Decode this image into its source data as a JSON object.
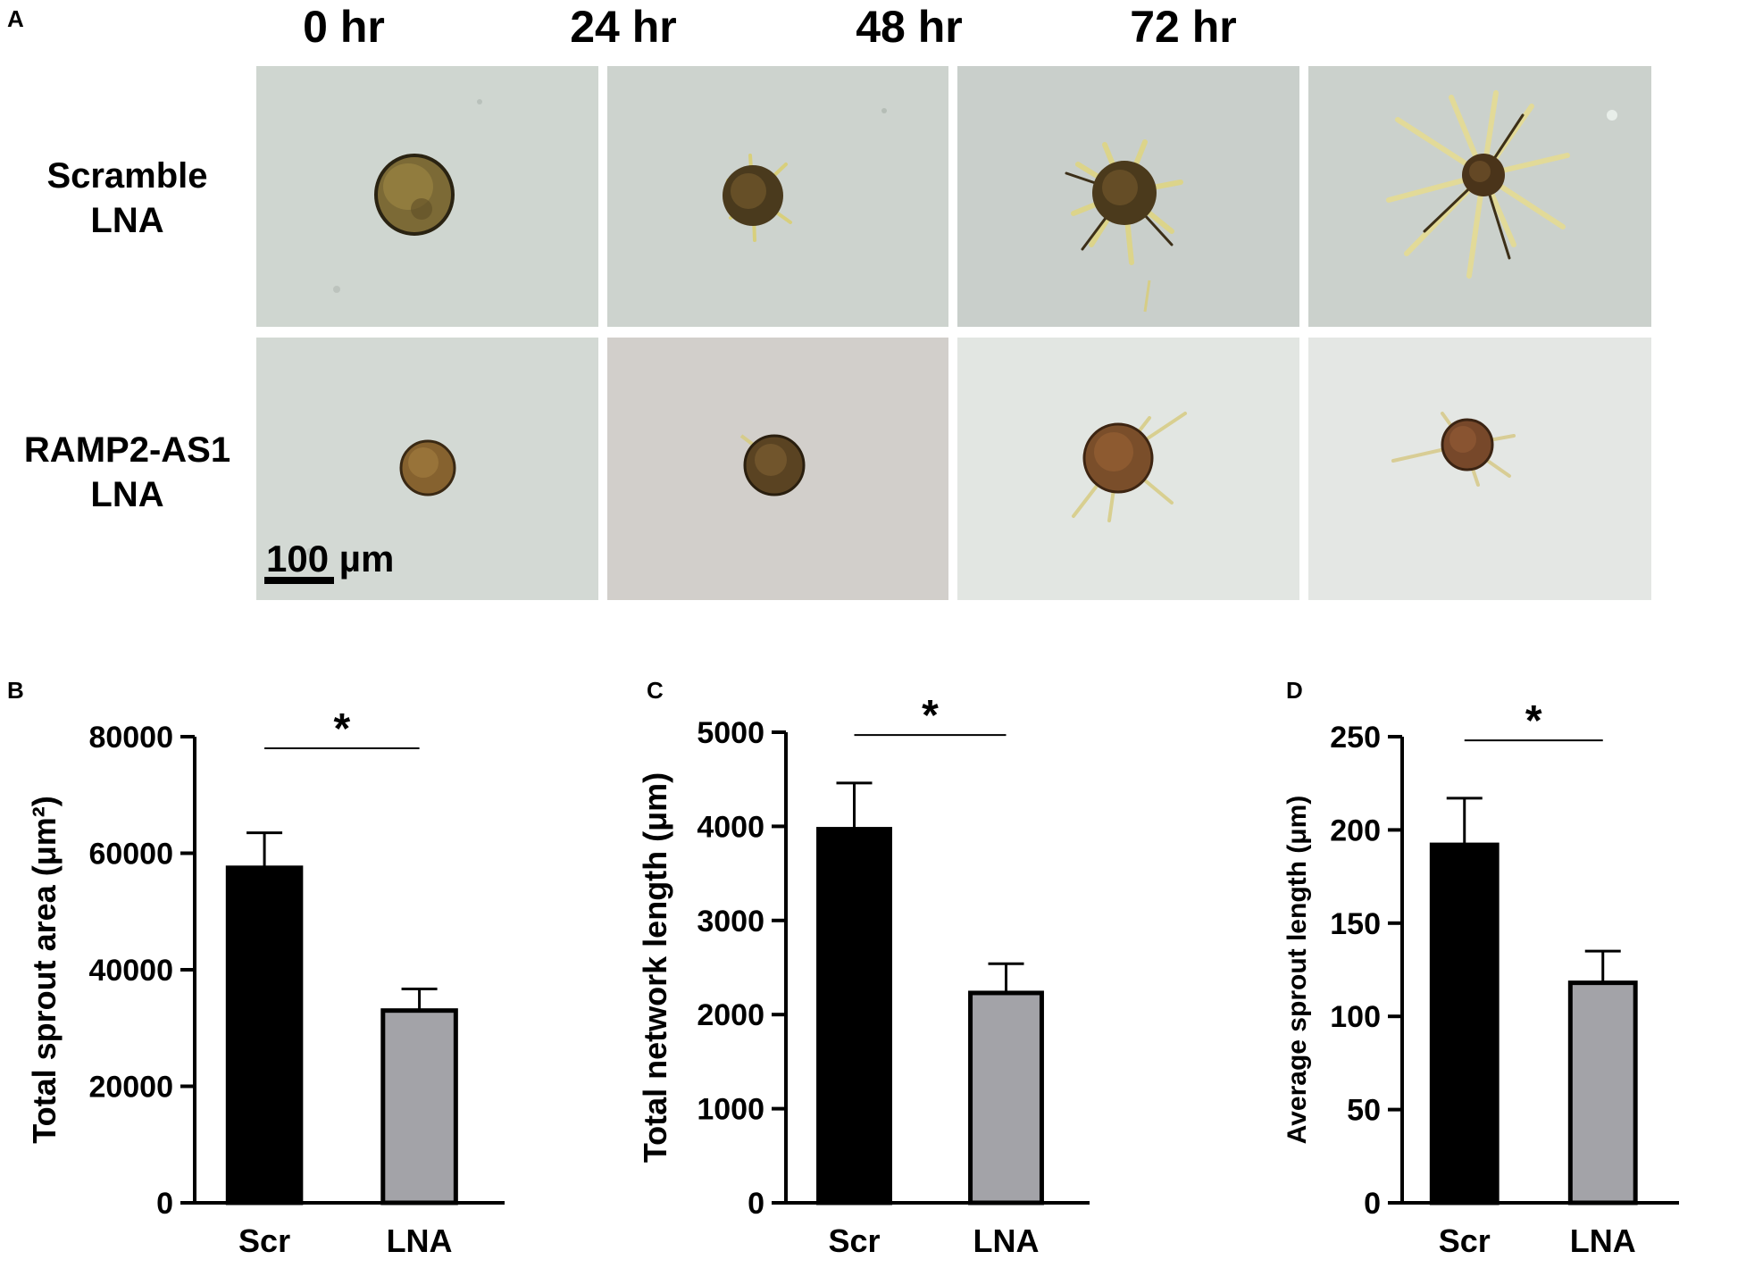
{
  "figure": {
    "panel_a": {
      "letter": "A",
      "time_labels": [
        "0 hr",
        "24 hr",
        "48 hr",
        "72 hr"
      ],
      "row_labels": [
        {
          "line1": "Scramble",
          "line2": "LNA"
        },
        {
          "line1": "RAMP2-AS1",
          "line2": "LNA"
        }
      ],
      "scale_bar_label": "100 µm",
      "micrographs": [
        {
          "row": "Scramble LNA",
          "time": "0 hr"
        },
        {
          "row": "Scramble LNA",
          "time": "24 hr"
        },
        {
          "row": "Scramble LNA",
          "time": "48 hr"
        },
        {
          "row": "Scramble LNA",
          "time": "72 hr"
        },
        {
          "row": "RAMP2-AS1 LNA",
          "time": "0 hr"
        },
        {
          "row": "RAMP2-AS1 LNA",
          "time": "24 hr"
        },
        {
          "row": "RAMP2-AS1 LNA",
          "time": "48 hr"
        },
        {
          "row": "RAMP2-AS1 LNA",
          "time": "72 hr"
        }
      ]
    }
  },
  "chart_data": [
    {
      "panel": "B",
      "type": "bar",
      "categories": [
        "Scr",
        "LNA"
      ],
      "values": [
        57500,
        33000
      ],
      "errors": [
        6000,
        3700
      ],
      "colors": [
        "#000000",
        "#a3a3a8"
      ],
      "ylabel": "Total sprout area (μm²)",
      "xlabel": "",
      "ylim": [
        0,
        80000
      ],
      "yticks": [
        0,
        20000,
        40000,
        60000,
        80000
      ],
      "ytick_labels": [
        "0",
        "20000",
        "40000",
        "60000",
        "80000"
      ],
      "significance": {
        "label": "*",
        "y": 78000
      },
      "grid": false
    },
    {
      "panel": "C",
      "type": "bar",
      "categories": [
        "Scr",
        "LNA"
      ],
      "values": [
        3970,
        2230
      ],
      "errors": [
        490,
        310
      ],
      "colors": [
        "#000000",
        "#a3a3a8"
      ],
      "ylabel": "Total network length (μm)",
      "xlabel": "",
      "ylim": [
        0,
        5000
      ],
      "yticks": [
        0,
        1000,
        2000,
        3000,
        4000,
        5000
      ],
      "ytick_labels": [
        "0",
        "1000",
        "2000",
        "3000",
        "4000",
        "5000"
      ],
      "significance": {
        "label": "*",
        "y": 4970
      },
      "grid": false
    },
    {
      "panel": "D",
      "type": "bar",
      "categories": [
        "Scr",
        "LNA"
      ],
      "values": [
        192,
        118
      ],
      "errors": [
        25,
        17
      ],
      "colors": [
        "#000000",
        "#a3a3a8"
      ],
      "ylabel": "Average sprout length (μm)",
      "xlabel": "",
      "ylim": [
        0,
        250
      ],
      "yticks": [
        0,
        50,
        100,
        150,
        200,
        250
      ],
      "ytick_labels": [
        "0",
        "50",
        "100",
        "150",
        "200",
        "250"
      ],
      "significance": {
        "label": "*",
        "y": 248
      },
      "grid": false
    }
  ]
}
